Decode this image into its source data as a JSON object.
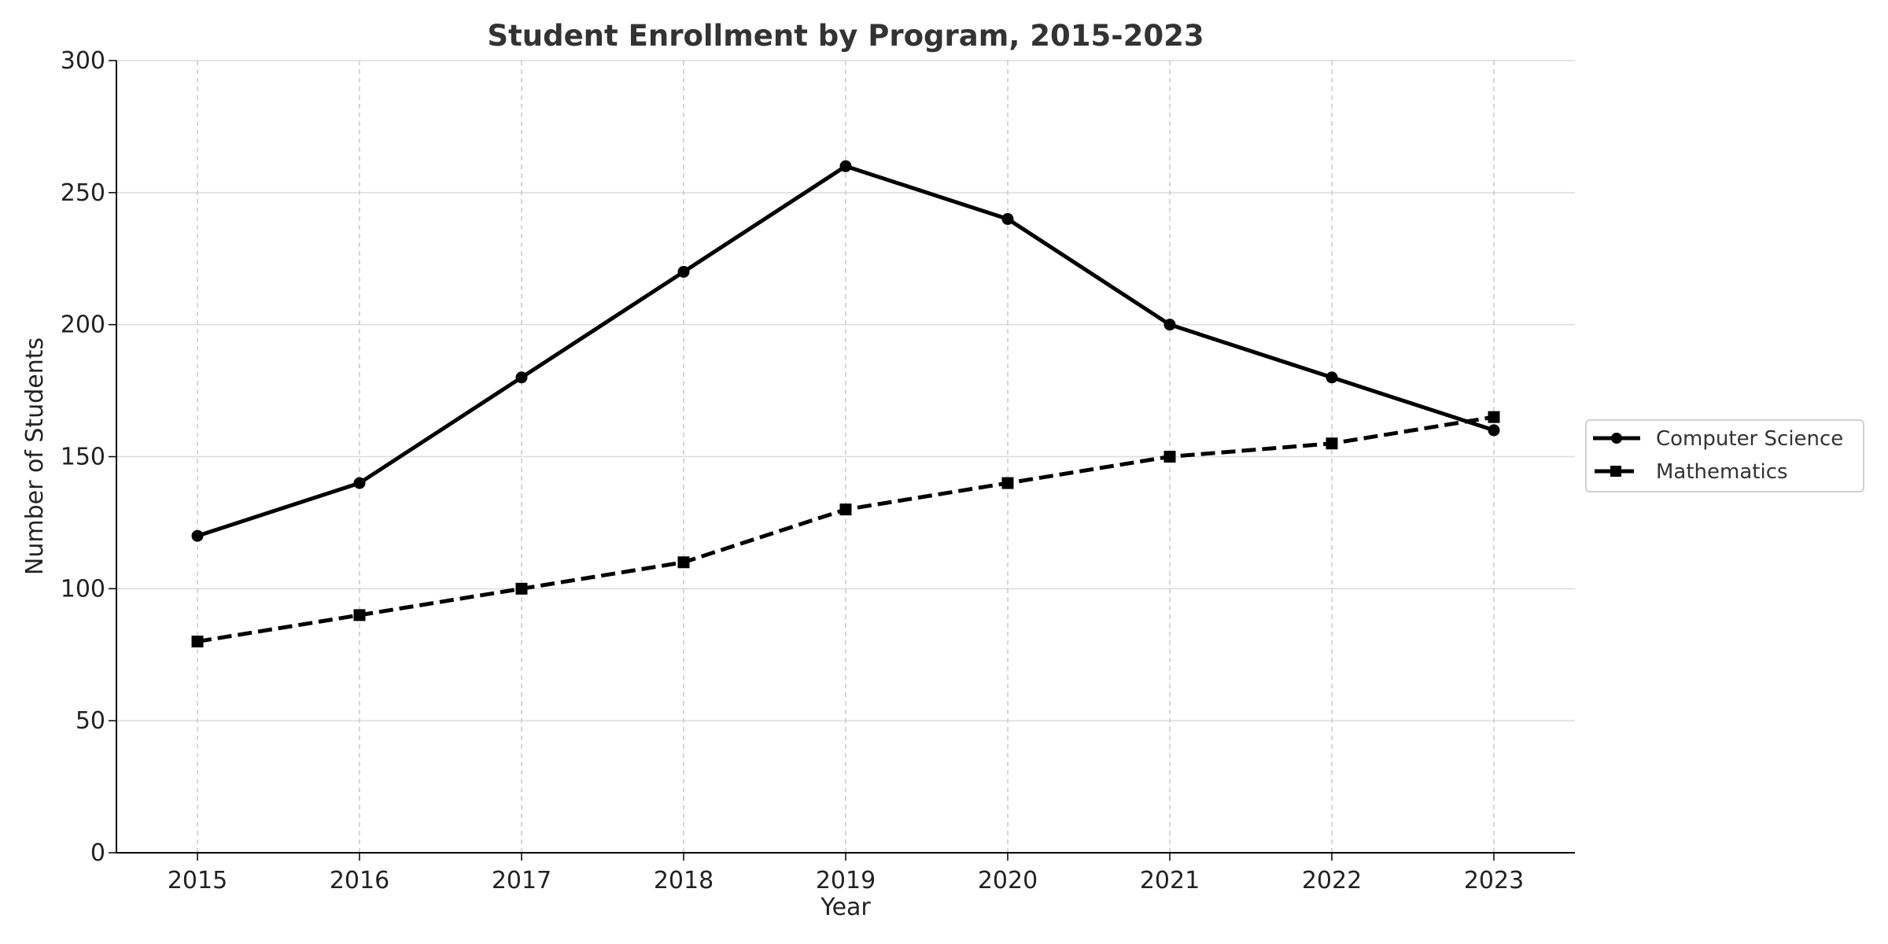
{
  "chart_data": {
    "type": "line",
    "title": "Student Enrollment by Program, 2015-2023",
    "xlabel": "Year",
    "ylabel": "Number of Students",
    "x": [
      2015,
      2016,
      2017,
      2018,
      2019,
      2020,
      2021,
      2022,
      2023
    ],
    "x_tick_labels": [
      "2015",
      "2016",
      "2017",
      "2018",
      "2019",
      "2020",
      "2021",
      "2022",
      "2023"
    ],
    "ylim": [
      0,
      300
    ],
    "y_ticks": [
      0,
      50,
      100,
      150,
      200,
      250,
      300
    ],
    "grid": true,
    "legend_placement": "outside-right",
    "series": [
      {
        "name": "Computer Science",
        "marker": "circle",
        "linestyle": "solid",
        "color": "#000000",
        "values": [
          120,
          140,
          180,
          220,
          260,
          240,
          200,
          180,
          160
        ]
      },
      {
        "name": "Mathematics",
        "marker": "square",
        "linestyle": "dashed",
        "color": "#000000",
        "values": [
          80,
          90,
          100,
          110,
          130,
          140,
          150,
          155,
          165
        ]
      }
    ]
  }
}
